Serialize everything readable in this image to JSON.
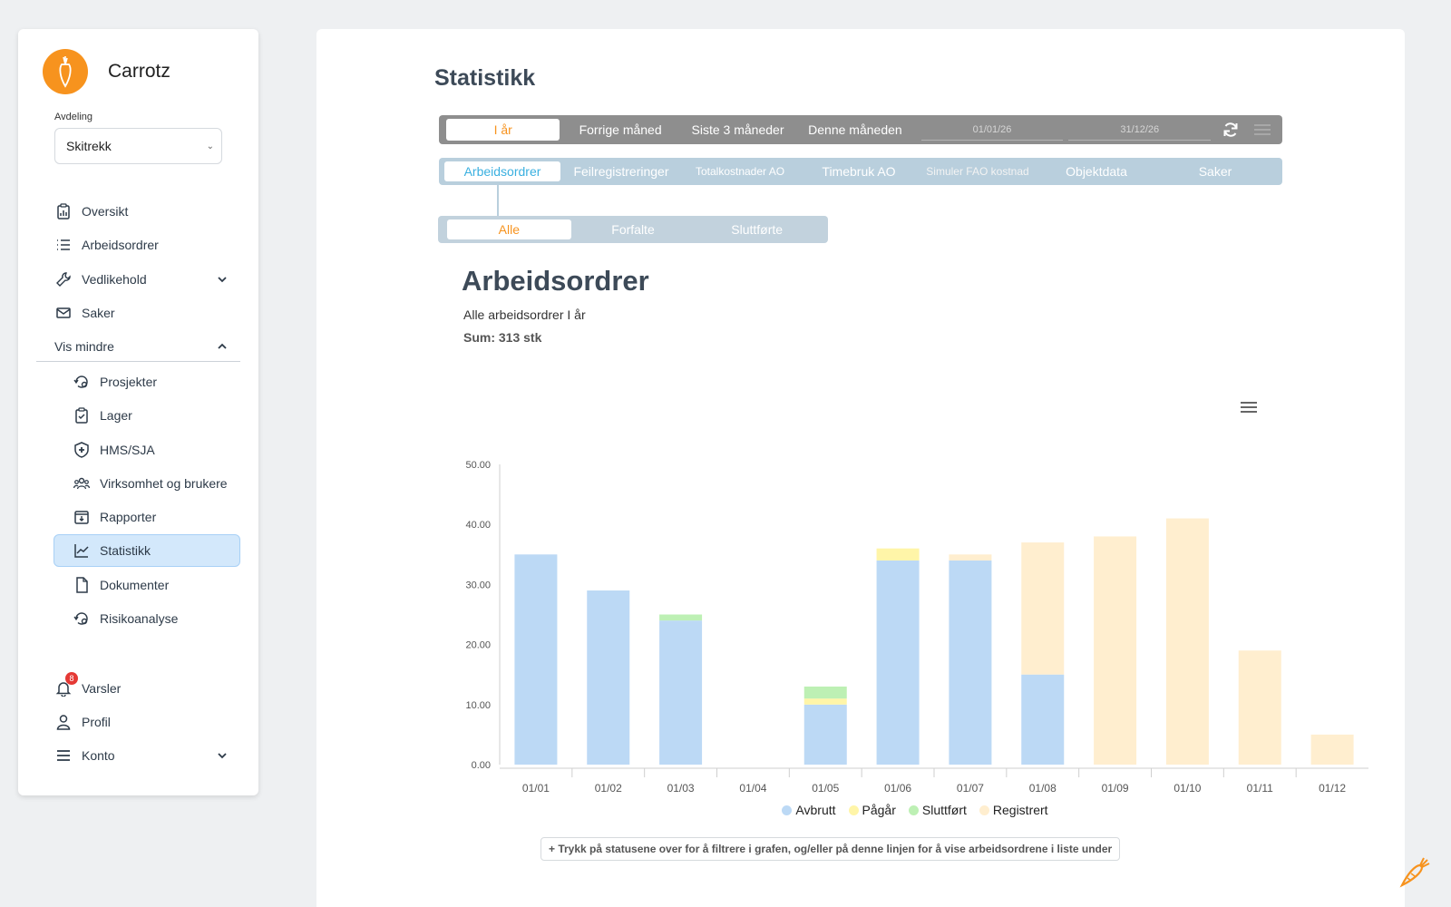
{
  "brand": {
    "name": "Carrotz"
  },
  "department": {
    "label": "Avdeling",
    "selected": "Skitrekk"
  },
  "nav": {
    "oversikt": "Oversikt",
    "arbeidsordrer": "Arbeidsordrer",
    "vedlikehold": "Vedlikehold",
    "saker": "Saker",
    "vis_mindre": "Vis mindre",
    "prosjekter": "Prosjekter",
    "lager": "Lager",
    "hms": "HMS/SJA",
    "virksomhet": "Virksomhet og brukere",
    "rapporter": "Rapporter",
    "statistikk": "Statistikk",
    "dokumenter": "Dokumenter",
    "risikoanalyse": "Risikoanalyse",
    "varsler": "Varsler",
    "varsler_count": "8",
    "profil": "Profil",
    "konto": "Konto"
  },
  "page": {
    "title": "Statistikk"
  },
  "period": {
    "buttons": [
      "I år",
      "Forrige måned",
      "Siste 3 måneder",
      "Denne måneden"
    ],
    "from": "01/01/26",
    "to": "31/12/26"
  },
  "tabs": [
    "Arbeidsordrer",
    "Feilregistreringer",
    "Totalkostnader AO",
    "Timebruk AO",
    "Simuler FAO kostnad",
    "Objektdata",
    "Saker"
  ],
  "subtabs": [
    "Alle",
    "Forfalte",
    "Sluttførte"
  ],
  "chart": {
    "heading": "Arbeidsordrer",
    "subtitle": "Alle arbeidsordrer I år",
    "sum": "Sum: 313 stk",
    "hint": "+ Trykk på statusene over for å filtrere i grafen, og/eller på denne linjen for å vise arbeidsordrene i liste under"
  },
  "chart_data": {
    "type": "bar",
    "stacked": true,
    "categories": [
      "01/01",
      "01/02",
      "01/03",
      "01/04",
      "01/05",
      "01/06",
      "01/07",
      "01/08",
      "01/09",
      "01/10",
      "01/11",
      "01/12"
    ],
    "series": [
      {
        "name": "Avbrutt",
        "color": "#bcd9f5",
        "values": [
          35,
          29,
          24,
          0,
          10,
          34,
          34,
          15,
          0,
          0,
          0,
          0
        ]
      },
      {
        "name": "Pågår",
        "color": "#fff5a8",
        "values": [
          0,
          0,
          0,
          0,
          1,
          2,
          0,
          0,
          0,
          0,
          0,
          0
        ]
      },
      {
        "name": "Sluttført",
        "color": "#bdf0b4",
        "values": [
          0,
          0,
          1,
          0,
          2,
          0,
          0,
          0,
          0,
          0,
          0,
          0
        ]
      },
      {
        "name": "Registrert",
        "color": "#ffeecf",
        "values": [
          0,
          0,
          0,
          0,
          0,
          0,
          1,
          22,
          38,
          41,
          19,
          5
        ]
      }
    ],
    "yticks": [
      "0.00",
      "10.00",
      "20.00",
      "30.00",
      "40.00",
      "50.00"
    ],
    "ylim": [
      0,
      50
    ],
    "legend_position": "bottom"
  }
}
